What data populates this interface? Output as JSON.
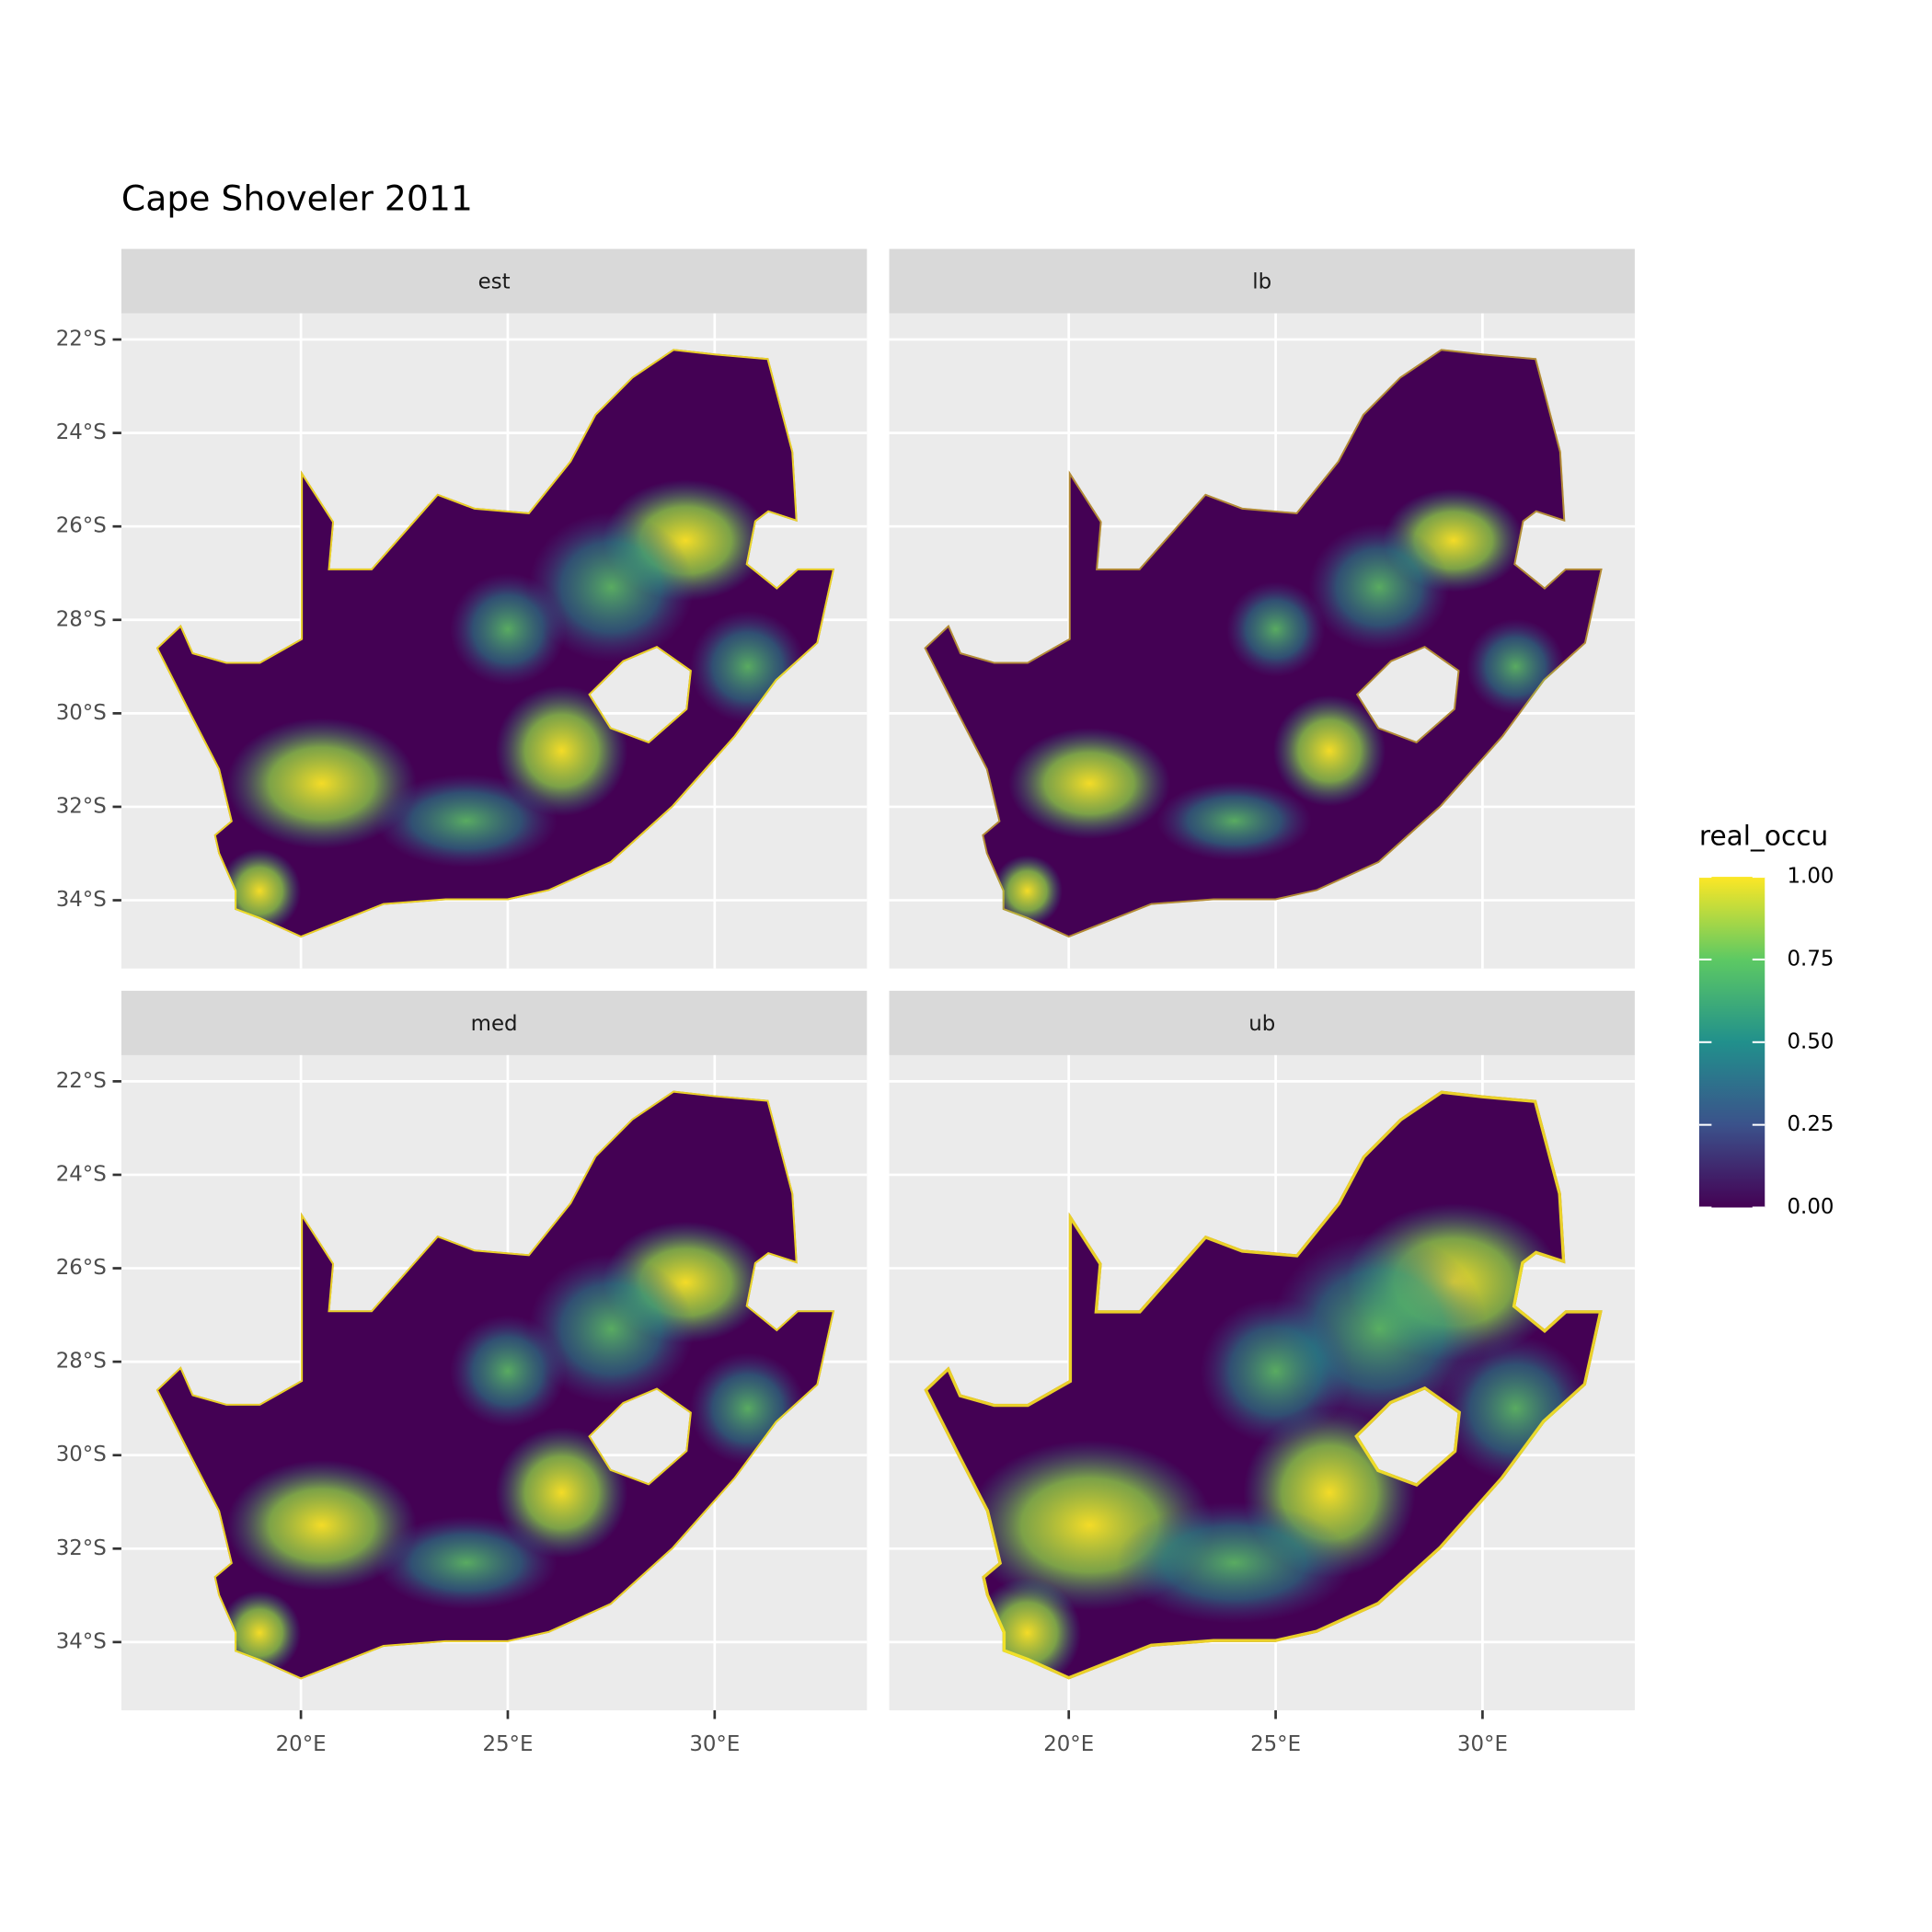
{
  "chart_data": {
    "type": "raster-map",
    "title": "Cape Shoveler 2011",
    "panels": [
      "est",
      "lb",
      "med",
      "ub"
    ],
    "xlim": [
      15.66,
      33.68
    ],
    "ylim": [
      -35.46,
      -21.44
    ],
    "xticks": [
      {
        "value": 20,
        "label": "20°E"
      },
      {
        "value": 25,
        "label": "25°E"
      },
      {
        "value": 30,
        "label": "30°E"
      }
    ],
    "yticks": [
      {
        "value": -22,
        "label": "22°S"
      },
      {
        "value": -24,
        "label": "24°S"
      },
      {
        "value": -26,
        "label": "26°S"
      },
      {
        "value": -28,
        "label": "28°S"
      },
      {
        "value": -30,
        "label": "30°S"
      },
      {
        "value": -32,
        "label": "32°S"
      },
      {
        "value": -34,
        "label": "34°S"
      }
    ],
    "grid": true,
    "legend": {
      "title": "real_occu",
      "lim": [
        0,
        1
      ],
      "ticks": [
        {
          "value": 0,
          "label": "0.00"
        },
        {
          "value": 0.25,
          "label": "0.25"
        },
        {
          "value": 0.5,
          "label": "0.50"
        },
        {
          "value": 0.75,
          "label": "0.75"
        },
        {
          "value": 1,
          "label": "1.00"
        }
      ],
      "colors": [
        "#440154",
        "#3b528b",
        "#21908c",
        "#5dc963",
        "#fde725"
      ]
    }
  }
}
